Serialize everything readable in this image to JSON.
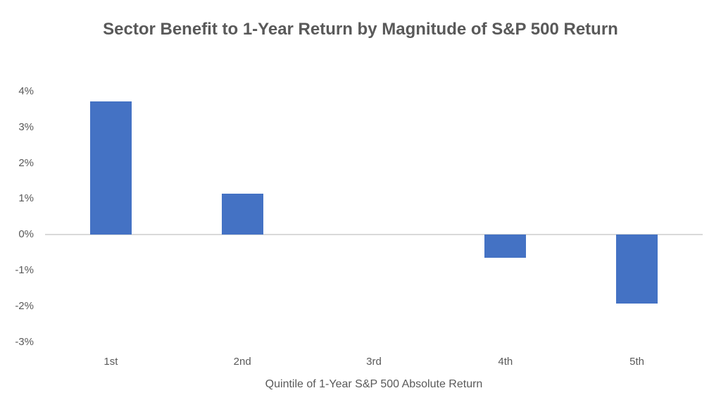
{
  "chart_data": {
    "type": "bar",
    "title": "Sector Benefit to 1-Year Return by Magnitude of S&P 500 Return",
    "categories": [
      "1st",
      "2nd",
      "3rd",
      "4th",
      "5th"
    ],
    "values": [
      3.73,
      1.15,
      0,
      -0.65,
      -1.92
    ],
    "xlabel": "Quintile of 1-Year S&P 500 Absolute Return",
    "ylabel": "",
    "ylim": [
      -3,
      4
    ],
    "ytick_step": 1,
    "ytick_labels": [
      "4%",
      "3%",
      "2%",
      "1%",
      "0%",
      "-1%",
      "-2%",
      "-3%"
    ],
    "grid": false,
    "legend": null,
    "zero_line_only": true,
    "colors": {
      "bar": "#4472C4",
      "axis_line": "#d9d9d9",
      "text": "#595959"
    }
  }
}
